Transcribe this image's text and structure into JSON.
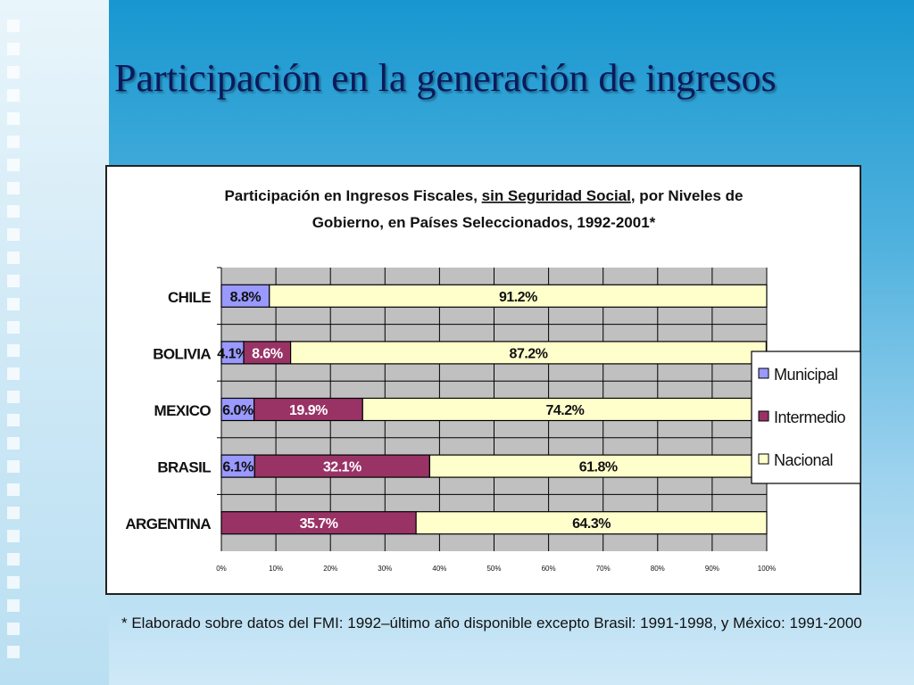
{
  "slide": {
    "title": "Participación en la generación de ingresos",
    "footnote": "* Elaborado sobre datos del FMI: 1992–último año disponible excepto Brasil: 1991-1998, y México: 1991-2000"
  },
  "chart_data": {
    "type": "bar",
    "orientation": "horizontal",
    "stacked": "percent",
    "title_parts": [
      {
        "text": "Participación en Ingresos Fiscales, ",
        "underline": false
      },
      {
        "text": "sin Seguridad Social",
        "underline": true
      },
      {
        "text": ", por Niveles de",
        "underline": false
      }
    ],
    "title_line2": "Gobierno, en Países Seleccionados, 1992-2001*",
    "categories": [
      "CHILE",
      "BOLIVIA",
      "MEXICO",
      "BRASIL",
      "ARGENTINA"
    ],
    "series": [
      {
        "name": "Municipal",
        "color": "#9999ff",
        "values": [
          8.8,
          4.1,
          6.0,
          6.1,
          0
        ],
        "labels": [
          "8.8%",
          "4.1%",
          "6.0%",
          "6.1%",
          ""
        ]
      },
      {
        "name": "Intermedio",
        "color": "#993366",
        "values": [
          0,
          8.6,
          19.9,
          32.1,
          35.7
        ],
        "labels": [
          "",
          "8.6%",
          "19.9%",
          "32.1%",
          "35.7%"
        ]
      },
      {
        "name": "Nacional",
        "color": "#ffffcc",
        "values": [
          91.2,
          87.2,
          74.2,
          61.8,
          64.3
        ],
        "labels": [
          "91.2%",
          "87.2%",
          "74.2%",
          "61.8%",
          "64.3%"
        ]
      }
    ],
    "x_ticks": [
      "0%",
      "10%",
      "20%",
      "30%",
      "40%",
      "50%",
      "60%",
      "70%",
      "80%",
      "90%",
      "100%"
    ],
    "xlim": [
      0,
      100
    ],
    "grid": true,
    "legend": "right"
  }
}
